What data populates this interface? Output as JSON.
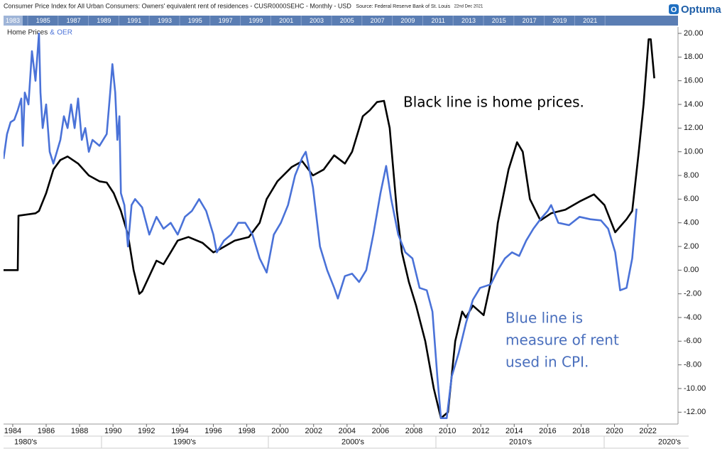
{
  "chart_data": {
    "type": "line",
    "title": "Consumer Price Index for All Urban Consumers: Owners' equivalent rent of residences - CUSR0000SEHC - Monthly - USD",
    "source": "Source: Federal Reserve Bank of St. Louis",
    "date": "22nd Dec 2021",
    "brand": "Optuma",
    "legend_joiner": "&",
    "navigator_labels": [
      "1983",
      "1985",
      "1987",
      "1989",
      "1991",
      "1993",
      "1995",
      "1997",
      "1999",
      "2001",
      "2003",
      "2005",
      "2007",
      "2009",
      "2011",
      "2013",
      "2015",
      "2017",
      "2019",
      "2021"
    ],
    "decade_labels": [
      "1980's",
      "1990's",
      "2000's",
      "2010's",
      "2020's"
    ],
    "annotations": [
      {
        "lines": [
          "Black line is home prices."
        ],
        "color": "#000000"
      },
      {
        "lines": [
          "Blue line is",
          "measure of rent",
          "used in CPI."
        ],
        "color": "#4a6fbd"
      }
    ],
    "xlim": [
      1983.45,
      2023.8
    ],
    "xticks": [
      1984,
      1986,
      1988,
      1990,
      1992,
      1994,
      1996,
      1998,
      2000,
      2002,
      2004,
      2006,
      2008,
      2010,
      2012,
      2014,
      2016,
      2018,
      2020,
      2022
    ],
    "ylim": [
      -13,
      20.54
    ],
    "yticks": [
      {
        "value": 20,
        "label": "20.00"
      },
      {
        "value": 18,
        "label": "18.00"
      },
      {
        "value": 16,
        "label": "16.00"
      },
      {
        "value": 14,
        "label": "14.00"
      },
      {
        "value": 12,
        "label": "12.00"
      },
      {
        "value": 10,
        "label": "10.00"
      },
      {
        "value": 8,
        "label": "8.00"
      },
      {
        "value": 6,
        "label": "6.00"
      },
      {
        "value": 4,
        "label": "4.00"
      },
      {
        "value": 2,
        "label": "2.00"
      },
      {
        "value": 0,
        "label": "0.00"
      },
      {
        "value": -2,
        "label": "-2.00"
      },
      {
        "value": -4,
        "label": "-4.00"
      },
      {
        "value": -6,
        "label": "-6.00"
      },
      {
        "value": -8,
        "label": "-8.00"
      },
      {
        "value": -10,
        "label": "-10.00"
      },
      {
        "value": -12,
        "label": "-12.00"
      }
    ],
    "series": [
      {
        "name": "Home Prices",
        "color": "#000000",
        "x": [
          1983.45,
          1984.3,
          1984.34,
          1985.36,
          1985.57,
          1986.0,
          1986.43,
          1986.85,
          1987.28,
          1987.91,
          1988.55,
          1989.19,
          1989.62,
          1990.04,
          1990.47,
          1990.89,
          1991.23,
          1991.57,
          1991.74,
          1992.17,
          1992.6,
          1993.02,
          1993.45,
          1993.87,
          1994.51,
          1995.36,
          1996.0,
          1996.43,
          1997.28,
          1998.13,
          1998.77,
          1999.19,
          1999.83,
          2000.68,
          2001.32,
          2001.96,
          2002.6,
          2003.23,
          2003.87,
          2004.3,
          2004.94,
          2005.36,
          2005.79,
          2006.21,
          2006.55,
          2006.98,
          2007.28,
          2007.7,
          2008.13,
          2008.68,
          2009.19,
          2009.62,
          2010.04,
          2010.47,
          2010.89,
          2011.11,
          2011.53,
          2012.17,
          2012.6,
          2013.02,
          2013.66,
          2014.17,
          2014.51,
          2014.94,
          2015.57,
          2016.21,
          2017.06,
          2017.91,
          2018.77,
          2019.4,
          2020.04,
          2020.72,
          2021.06,
          2021.45,
          2021.74,
          2022.04,
          2022.17,
          2022.38
        ],
        "values": [
          0,
          0,
          4.6,
          4.8,
          5,
          6.5,
          8.5,
          9.3,
          9.6,
          9,
          8,
          7.5,
          7.4,
          6.5,
          5,
          3,
          0,
          -2,
          -1.8,
          -0.5,
          0.8,
          0.5,
          1.5,
          2.5,
          2.8,
          2.3,
          1.5,
          1.8,
          2.5,
          2.8,
          4,
          6,
          7.5,
          8.7,
          9.2,
          8,
          8.5,
          9.7,
          9,
          10,
          13,
          13.5,
          14.2,
          14.3,
          12,
          5,
          1.5,
          -1,
          -3,
          -6,
          -10,
          -12.5,
          -12,
          -6,
          -3.5,
          -4,
          -3,
          -3.8,
          -1,
          4,
          8.5,
          10.8,
          10,
          6,
          4.2,
          4.8,
          5.1,
          5.8,
          6.4,
          5.5,
          3.2,
          4.3,
          5,
          10,
          14,
          19.5,
          19.5,
          16.2
        ]
      },
      {
        "name": "OER",
        "color": "#4a72d8",
        "x": [
          1983.45,
          1983.66,
          1983.87,
          1984.09,
          1984.3,
          1984.51,
          1984.6,
          1984.72,
          1984.94,
          1985.15,
          1985.36,
          1985.57,
          1985.66,
          1985.79,
          1986.0,
          1986.21,
          1986.43,
          1986.64,
          1986.85,
          1987.06,
          1987.28,
          1987.49,
          1987.7,
          1987.91,
          1988.13,
          1988.34,
          1988.55,
          1988.77,
          1989.19,
          1989.62,
          1989.83,
          1989.96,
          1990.13,
          1990.26,
          1990.38,
          1990.47,
          1990.68,
          1990.89,
          1991.11,
          1991.32,
          1991.74,
          1992.17,
          1992.6,
          1993.02,
          1993.45,
          1993.87,
          1994.3,
          1994.72,
          1995.15,
          1995.57,
          1996.0,
          1996.21,
          1996.64,
          1997.06,
          1997.49,
          1997.91,
          1998.34,
          1998.77,
          1999.19,
          1999.62,
          2000.04,
          2000.47,
          2000.89,
          2001.32,
          2001.53,
          2001.96,
          2002.38,
          2002.81,
          2003.23,
          2003.45,
          2003.87,
          2004.3,
          2004.72,
          2005.15,
          2005.57,
          2006.0,
          2006.34,
          2006.64,
          2007.06,
          2007.49,
          2007.91,
          2008.34,
          2008.77,
          2009.11,
          2009.4,
          2009.62,
          2009.96,
          2010.26,
          2010.68,
          2011.11,
          2011.53,
          2011.96,
          2012.6,
          2013.02,
          2013.45,
          2013.87,
          2014.3,
          2014.72,
          2015.15,
          2015.57,
          2016.0,
          2016.21,
          2016.64,
          2017.28,
          2017.91,
          2018.55,
          2019.19,
          2019.62,
          2020.04,
          2020.34,
          2020.72,
          2021.06,
          2021.32
        ],
        "values": [
          9.4,
          11.5,
          12.5,
          12.7,
          13.5,
          14.5,
          10.5,
          15,
          14,
          18.5,
          16,
          20,
          15,
          12,
          14,
          10,
          9,
          10,
          11,
          13,
          12,
          14,
          12,
          14.5,
          11,
          12,
          10,
          11,
          10.5,
          11.5,
          15,
          17.4,
          15,
          11,
          13,
          6.5,
          5.5,
          2,
          5.5,
          6,
          5.3,
          3,
          4.5,
          3.5,
          4,
          3,
          4.5,
          5,
          6,
          5,
          3,
          1.5,
          2.5,
          3,
          4,
          4,
          3,
          1,
          -0.2,
          3,
          4,
          5.5,
          8,
          9.5,
          10,
          7,
          2,
          0,
          -1.5,
          -2.4,
          -0.5,
          -0.3,
          -1,
          0,
          3,
          6.5,
          8.8,
          6,
          3,
          1.5,
          1,
          -1.5,
          -1.7,
          -3.5,
          -9,
          -12.5,
          -12.5,
          -9,
          -7,
          -4.5,
          -2.5,
          -1.5,
          -1.2,
          0,
          1,
          1.5,
          1.2,
          2.5,
          3.5,
          4.3,
          5,
          5.5,
          4,
          3.8,
          4.5,
          4.3,
          4.2,
          3.5,
          1.5,
          -1.7,
          -1.5,
          1,
          5.2
        ]
      }
    ]
  }
}
